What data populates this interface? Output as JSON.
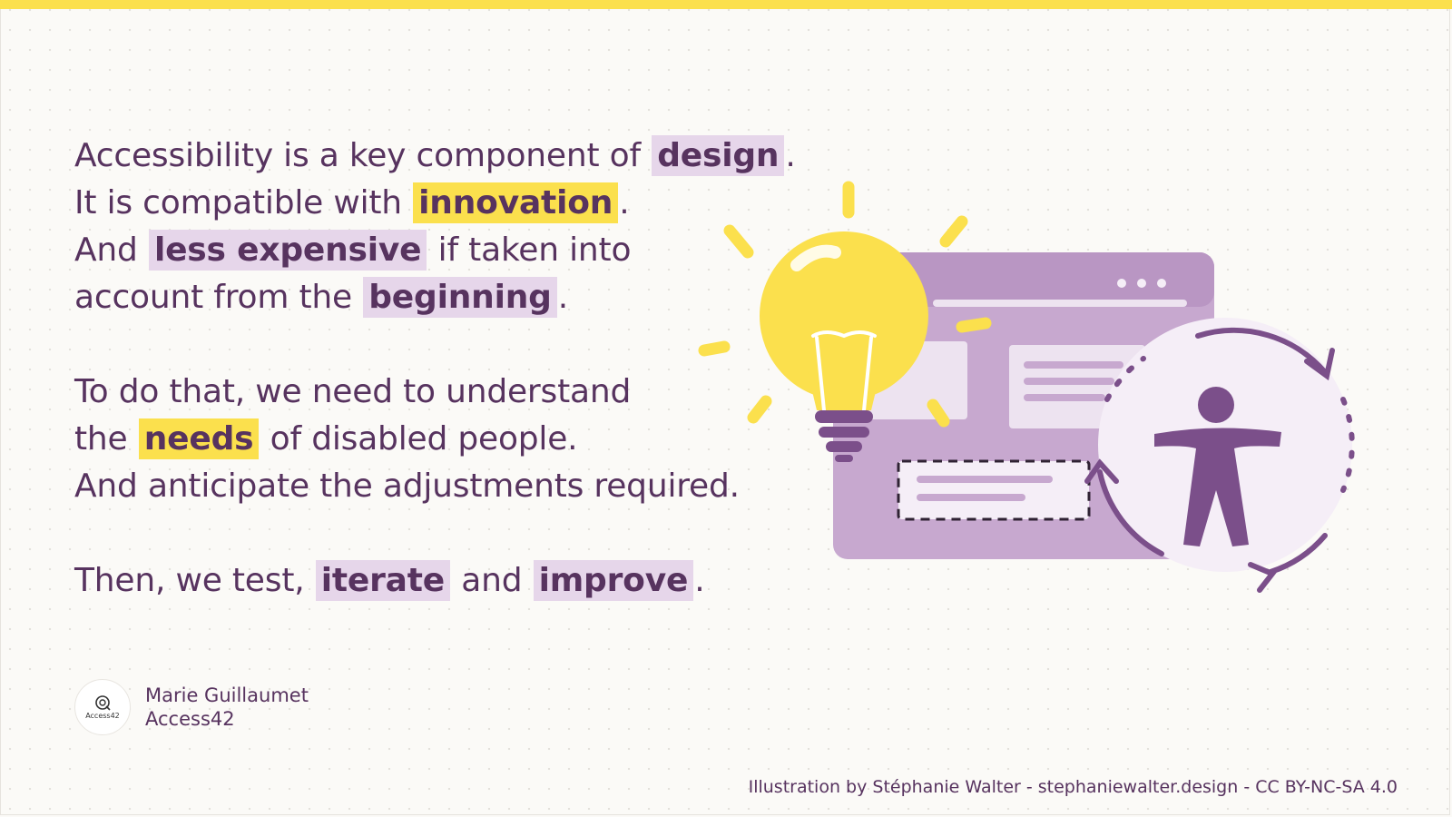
{
  "paragraphs": [
    [
      [
        {
          "t": "Accessibility is a key component of "
        },
        {
          "t": "design",
          "hl": "purple"
        },
        {
          "t": "."
        }
      ],
      [
        {
          "t": "It is compatible with "
        },
        {
          "t": "innovation",
          "hl": "yellow"
        },
        {
          "t": "."
        }
      ],
      [
        {
          "t": "And "
        },
        {
          "t": "less expensive",
          "hl": "purple"
        },
        {
          "t": " if taken into"
        }
      ],
      [
        {
          "t": "account from the "
        },
        {
          "t": "beginning",
          "hl": "purple"
        },
        {
          "t": "."
        }
      ]
    ],
    [
      [
        {
          "t": "To do that, we need to understand"
        }
      ],
      [
        {
          "t": "the "
        },
        {
          "t": "needs",
          "hl": "yellow"
        },
        {
          "t": " of disabled people."
        }
      ],
      [
        {
          "t": "And anticipate the adjustments required."
        }
      ]
    ],
    [
      [
        {
          "t": "Then, we test, "
        },
        {
          "t": "iterate",
          "hl": "purple"
        },
        {
          "t": " and "
        },
        {
          "t": "improve",
          "hl": "purple"
        },
        {
          "t": "."
        }
      ]
    ]
  ],
  "author": {
    "logo_text": "Access42",
    "name": "Marie Guillaumet",
    "org": "Access42"
  },
  "credit": "Illustration by Stéphanie Walter - stephaniewalter.design  - CC BY-NC-SA 4.0",
  "colors": {
    "text": "#57335f",
    "highlight_purple": "#e6d6ea",
    "highlight_yellow": "#fbe04d",
    "accent_yellow": "#fbe04d",
    "illustration_purple": "#c7a8cf",
    "illustration_dark": "#7b4f8a"
  },
  "icons": [
    "lightbulb-icon",
    "browser-window-icon",
    "accessibility-person-icon",
    "refresh-cycle-icon",
    "access42-logo-icon"
  ]
}
